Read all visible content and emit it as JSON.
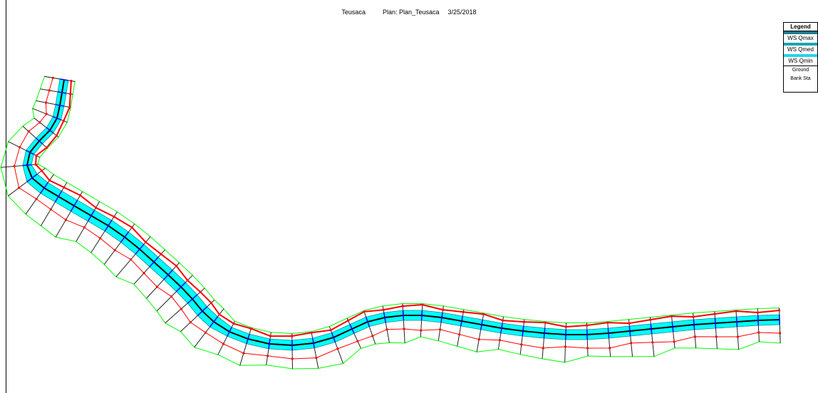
{
  "header": {
    "river": "Teusaca",
    "plan": "Plan: Plan_Teusaca",
    "date": "3/25/2018"
  },
  "legend": {
    "title": "Legend",
    "items": [
      {
        "label": "WS Qmax",
        "color": "#1f7a8c"
      },
      {
        "label": "WS Qmed",
        "color": "#1aa6b0"
      },
      {
        "label": "WS Qmin",
        "color": "#22d6e6"
      }
    ],
    "ground_label": "Ground",
    "bank_label": "Bank Sta"
  },
  "colors": {
    "water": "#00ffff",
    "centerline": "#000000",
    "bank": "#ff0000",
    "outline": "#00ff00",
    "xs": "#222222",
    "bankpoint": "#0000ff"
  }
}
